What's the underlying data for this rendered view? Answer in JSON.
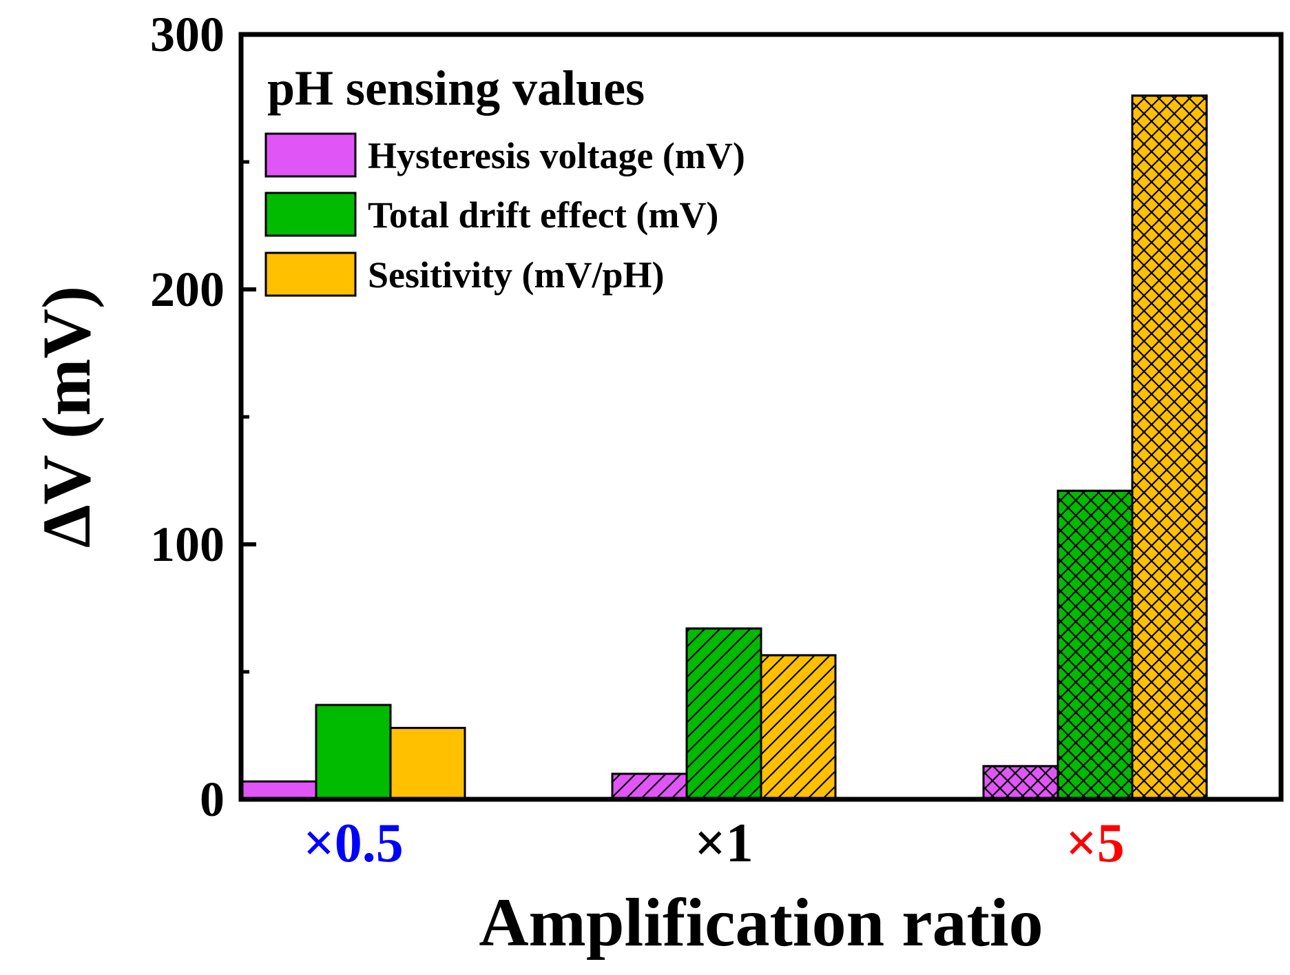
{
  "chart_data": {
    "type": "bar",
    "title": "",
    "xlabel": "Amplification ratio",
    "ylabel": "ΔV (mV)",
    "ylim": [
      0,
      300
    ],
    "yticks": [
      0,
      100,
      200,
      300
    ],
    "yticks_minor": [
      50,
      150,
      250
    ],
    "ytick_labels": [
      "0",
      "100",
      "200",
      "300"
    ],
    "categories": [
      "×0.5",
      "×1",
      "×5"
    ],
    "category_colors": [
      "#0000ff",
      "#000000",
      "#ff0000"
    ],
    "category_patterns": [
      "none",
      "diagonal",
      "crosshatch"
    ],
    "legend_title": "pH sensing values",
    "legend_position": "top-left",
    "grid": false,
    "series": [
      {
        "name": "Hysteresis voltage (mV)",
        "color": "#e055f6",
        "values": [
          7,
          10,
          13
        ]
      },
      {
        "name": "Total drift effect (mV)",
        "color": "#00bb00",
        "values": [
          37,
          67,
          121
        ]
      },
      {
        "name": "Sesitivity (mV/pH)",
        "color": "#ffc000",
        "values": [
          28,
          56.5,
          276
        ]
      }
    ]
  }
}
